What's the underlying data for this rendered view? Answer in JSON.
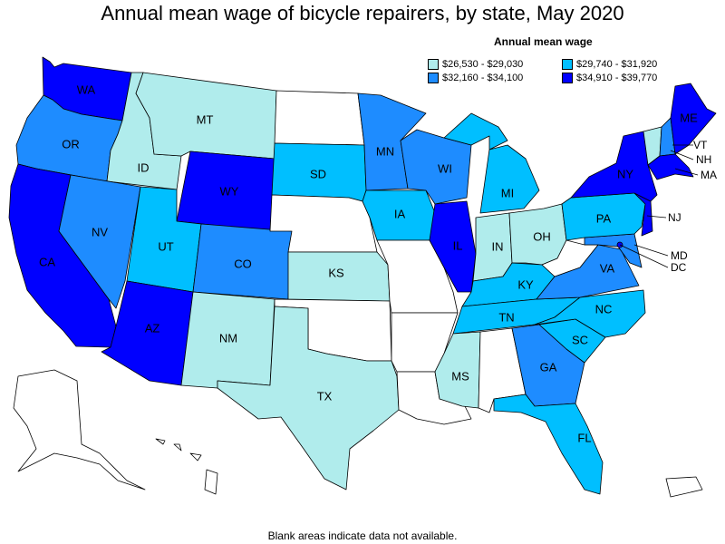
{
  "title": "Annual mean wage of bicycle repairers, by state, May 2020",
  "legend": {
    "title": "Annual mean wage",
    "items": [
      {
        "label": "$26,530 - $29,030",
        "color": "#b0ecec"
      },
      {
        "label": "$29,740 - $31,920",
        "color": "#00bfff"
      },
      {
        "label": "$32,160 - $34,100",
        "color": "#1e8cff"
      },
      {
        "label": "$34,910 - $39,770",
        "color": "#0000ff"
      }
    ]
  },
  "footnote": "Blank areas indicate data not available.",
  "colors": {
    "blank": "#ffffff",
    "t1": "#b0ecec",
    "t2": "#00bfff",
    "t3": "#1e8cff",
    "t4": "#0000ff"
  },
  "states": {
    "WA": {
      "label": "WA",
      "tier": 4
    },
    "OR": {
      "label": "OR",
      "tier": 3
    },
    "CA": {
      "label": "CA",
      "tier": 4
    },
    "ID": {
      "label": "ID",
      "tier": 1
    },
    "NV": {
      "label": "NV",
      "tier": 3
    },
    "MT": {
      "label": "MT",
      "tier": 1
    },
    "WY": {
      "label": "WY",
      "tier": 4
    },
    "UT": {
      "label": "UT",
      "tier": 2
    },
    "AZ": {
      "label": "AZ",
      "tier": 4
    },
    "CO": {
      "label": "CO",
      "tier": 3
    },
    "NM": {
      "label": "NM",
      "tier": 1
    },
    "ND": {
      "label": "",
      "tier": 0
    },
    "SD": {
      "label": "SD",
      "tier": 2
    },
    "NE": {
      "label": "",
      "tier": 0
    },
    "KS": {
      "label": "KS",
      "tier": 1
    },
    "OK": {
      "label": "",
      "tier": 0
    },
    "TX": {
      "label": "TX",
      "tier": 1
    },
    "MN": {
      "label": "MN",
      "tier": 3
    },
    "IA": {
      "label": "IA",
      "tier": 2
    },
    "MO": {
      "label": "",
      "tier": 0
    },
    "AR": {
      "label": "",
      "tier": 0
    },
    "LA": {
      "label": "",
      "tier": 0
    },
    "WI": {
      "label": "WI",
      "tier": 3
    },
    "IL": {
      "label": "IL",
      "tier": 4
    },
    "MI": {
      "label": "MI",
      "tier": 2
    },
    "IN": {
      "label": "IN",
      "tier": 1
    },
    "OH": {
      "label": "OH",
      "tier": 1
    },
    "KY": {
      "label": "KY",
      "tier": 2
    },
    "TN": {
      "label": "TN",
      "tier": 2
    },
    "MS": {
      "label": "MS",
      "tier": 1
    },
    "AL": {
      "label": "",
      "tier": 0
    },
    "GA": {
      "label": "GA",
      "tier": 3
    },
    "FL": {
      "label": "FL",
      "tier": 2
    },
    "SC": {
      "label": "SC",
      "tier": 2
    },
    "NC": {
      "label": "NC",
      "tier": 2
    },
    "VA": {
      "label": "VA",
      "tier": 3
    },
    "WV": {
      "label": "",
      "tier": 0
    },
    "PA": {
      "label": "PA",
      "tier": 2
    },
    "NY": {
      "label": "NY",
      "tier": 4
    },
    "ME": {
      "label": "ME",
      "tier": 4
    },
    "VT": {
      "label": "VT",
      "tier": 1
    },
    "NH": {
      "label": "NH",
      "tier": 3
    },
    "MA": {
      "label": "MA",
      "tier": 4
    },
    "NJ": {
      "label": "NJ",
      "tier": 4
    },
    "MD": {
      "label": "MD",
      "tier": 3
    },
    "DC": {
      "label": "DC",
      "tier": 4
    },
    "AK": {
      "label": "",
      "tier": 0
    },
    "HI": {
      "label": "",
      "tier": 0
    },
    "PR": {
      "label": "",
      "tier": 0
    }
  }
}
